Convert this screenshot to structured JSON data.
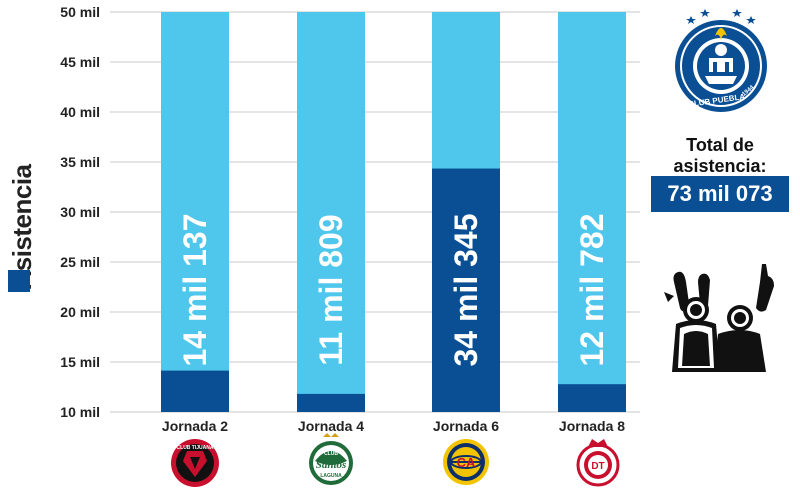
{
  "chart_data": {
    "type": "bar",
    "ylabel": "Asistencia",
    "ylim": [
      10,
      50
    ],
    "yticks": [
      "10 mil",
      "15 mil",
      "20 mil",
      "25 mil",
      "30 mil",
      "35 mil",
      "40 mil",
      "45 mil",
      "50 mil"
    ],
    "ytick_values": [
      10,
      15,
      20,
      25,
      30,
      35,
      40,
      45,
      50
    ],
    "categories": [
      "Jornada 2",
      "Jornada 4",
      "Jornada 6",
      "Jornada 8"
    ],
    "values": [
      14.137,
      11.809,
      34.345,
      12.782
    ],
    "value_labels": [
      "14 mil 137",
      "11 mil 809",
      "34 mil 345",
      "12 mil 782"
    ],
    "opponents": [
      "Club Tijuana",
      "Club Santos Laguna",
      "Club América",
      "Toluca"
    ],
    "grid": true
  },
  "summary": {
    "total_label_line1": "Total de",
    "total_label_line2": "asistencia:",
    "total_value": "73 mil 073"
  },
  "logos": {
    "club_name": "CLUB PUEBLA",
    "club_year": "1944",
    "tijuana_text": "CLUB TIJUANA",
    "santos_text": "Santos",
    "santos_club": "CLUB",
    "santos_laguna": "LAGUNA",
    "america_text": "CA",
    "toluca_text": "DT"
  },
  "colors": {
    "light_bar": "#4fc6ec",
    "dark_bar": "#0a4f94",
    "grid": "#c8c8c8"
  }
}
